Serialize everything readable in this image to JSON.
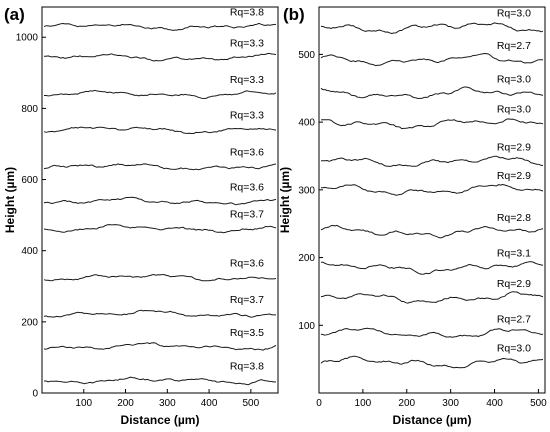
{
  "chart_data": [
    {
      "panel": "(a)",
      "type": "line",
      "xlabel": "Distance (µm)",
      "ylabel": "Height (µm)",
      "xlim": [
        0,
        565
      ],
      "ylim": [
        0,
        1085
      ],
      "xticks": [
        100,
        200,
        300,
        400,
        500
      ],
      "yticks": [
        0,
        200,
        400,
        600,
        800,
        1000
      ],
      "grid": false,
      "series": [
        {
          "label": "Rq=3.8",
          "baseline": 35
        },
        {
          "label": "Rq=3.5",
          "baseline": 130
        },
        {
          "label": "Rq=3.7",
          "baseline": 222
        },
        {
          "label": "Rq=3.6",
          "baseline": 325
        },
        {
          "label": "Rq=3.7",
          "baseline": 462
        },
        {
          "label": "Rq=3.6",
          "baseline": 538
        },
        {
          "label": "Rq=3.6",
          "baseline": 636
        },
        {
          "label": "Rq=3.3",
          "baseline": 740
        },
        {
          "label": "Rq=3.3",
          "baseline": 840
        },
        {
          "label": "Rq=3.3",
          "baseline": 943
        },
        {
          "label": "Rq=3.8",
          "baseline": 1030
        }
      ]
    },
    {
      "panel": "(b)",
      "type": "line",
      "xlabel": "Distance (µm)",
      "ylabel": "Height (µm)",
      "xlim": [
        0,
        515
      ],
      "ylim": [
        0,
        570
      ],
      "xticks": [
        0,
        100,
        200,
        300,
        400,
        500
      ],
      "yticks": [
        100,
        200,
        300,
        400,
        500
      ],
      "grid": false,
      "series": [
        {
          "label": "Rq=3.0",
          "baseline": 45
        },
        {
          "label": "Rq=2.7",
          "baseline": 88
        },
        {
          "label": "Rq=2.9",
          "baseline": 140
        },
        {
          "label": "Rq=3.1",
          "baseline": 185
        },
        {
          "label": "Rq=2.8",
          "baseline": 238
        },
        {
          "label": "Rq=2.9",
          "baseline": 300
        },
        {
          "label": "Rq=2.9",
          "baseline": 342
        },
        {
          "label": "Rq=3.0",
          "baseline": 398
        },
        {
          "label": "Rq=3.0",
          "baseline": 442
        },
        {
          "label": "Rq=2.7",
          "baseline": 492
        },
        {
          "label": "Rq=3.0",
          "baseline": 540
        }
      ]
    }
  ]
}
